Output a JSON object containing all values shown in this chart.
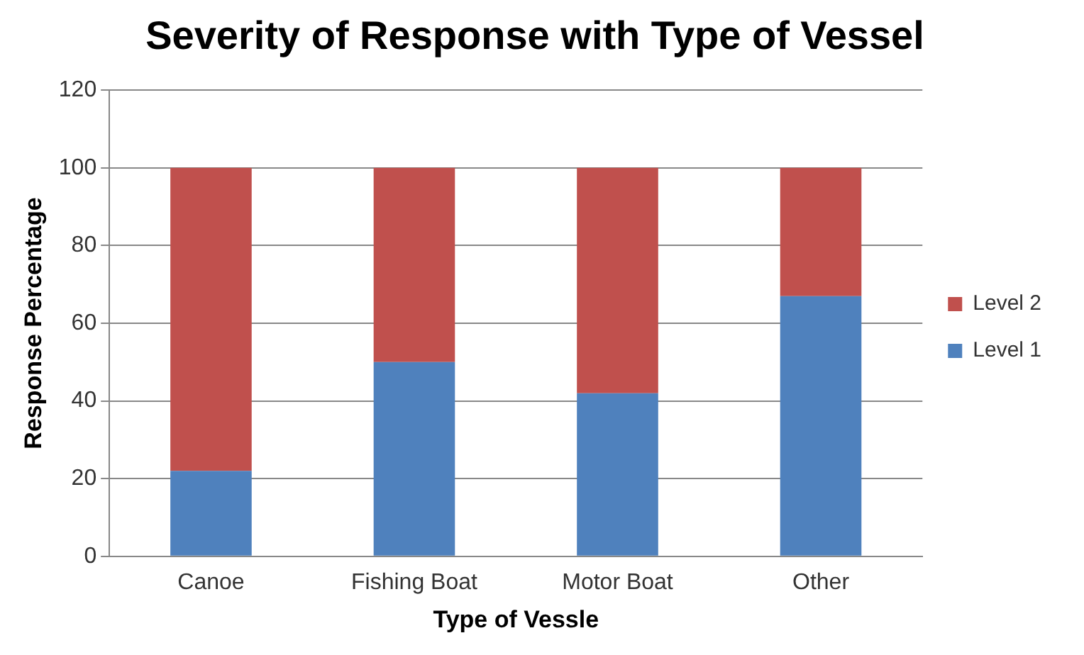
{
  "chart_data": {
    "type": "bar",
    "title": "Severity of Response with Type of Vessel",
    "xlabel": "Type of Vessle",
    "ylabel": "Response Percentage",
    "categories": [
      "Canoe",
      "Fishing Boat",
      "Motor Boat",
      "Other"
    ],
    "series": [
      {
        "name": "Level 1",
        "color": "#4f81bd",
        "values": [
          22,
          50,
          42,
          67
        ]
      },
      {
        "name": "Level 2",
        "color": "#c0504d",
        "values": [
          78,
          50,
          58,
          33
        ]
      }
    ],
    "stacked": true,
    "ylim": [
      0,
      120
    ],
    "yticks": [
      0,
      20,
      40,
      60,
      80,
      100,
      120
    ],
    "grid": "y",
    "legend": "right"
  }
}
